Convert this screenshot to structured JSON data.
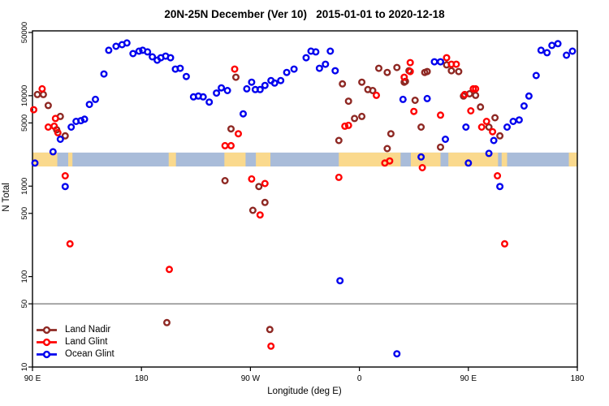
{
  "chart_data": {
    "type": "scatter",
    "title": "20N-25N December (Ver 10)   2015-01-01 to 2020-12-18",
    "x_axis": {
      "label": "Longitude (deg E)",
      "ticks": [
        {
          "value": 90,
          "label": "90 E"
        },
        {
          "value": 180,
          "label": "180"
        },
        {
          "value": 270,
          "label": "90 W"
        },
        {
          "value": 360,
          "label": "0"
        },
        {
          "value": 450,
          "label": "90 E"
        },
        {
          "value": 540,
          "label": "180"
        }
      ],
      "xlim": [
        90,
        540
      ]
    },
    "y_axis": {
      "label": "N Total",
      "scale": "log",
      "ticks": [
        {
          "value": 50000,
          "label": "50000"
        },
        {
          "value": 10000,
          "label": "10000"
        },
        {
          "value": 5000,
          "label": "5000"
        },
        {
          "value": 1000,
          "label": "1000"
        },
        {
          "value": 500,
          "label": "500"
        },
        {
          "value": 100,
          "label": "100"
        },
        {
          "value": 50,
          "label": "50"
        },
        {
          "value": 10,
          "label": "10"
        }
      ],
      "ylim": [
        10,
        50000
      ]
    },
    "reference_line": {
      "value": 50,
      "color": "#808080"
    },
    "map_band": {
      "description": "20N-25N latitude world-map strip drawn across plot",
      "value_range": [
        1650,
        2350
      ],
      "ocean_color": "#a9bcd9",
      "land_color": "#fad98d",
      "land_segments_lon": [
        [
          90,
          110.5
        ],
        [
          119.5,
          123
        ],
        [
          202.5,
          208.5
        ],
        [
          248.5,
          266
        ],
        [
          274.5,
          286.5
        ],
        [
          343,
          394
        ],
        [
          402.5,
          427
        ],
        [
          433.5,
          474.5
        ],
        [
          477.5,
          482
        ],
        [
          533,
          540
        ]
      ]
    },
    "legend": {
      "position": "bottom-left"
    },
    "series": [
      {
        "name": "Land Nadir",
        "color": "#8e2823",
        "points": [
          [
            94,
            10300
          ],
          [
            99,
            10300
          ],
          [
            103,
            7800
          ],
          [
            110,
            4200
          ],
          [
            113,
            5900
          ],
          [
            117,
            3600
          ],
          [
            201,
            31
          ],
          [
            249,
            1150
          ],
          [
            254,
            4300
          ],
          [
            258,
            16000
          ],
          [
            272,
            540
          ],
          [
            277,
            990
          ],
          [
            282,
            660
          ],
          [
            286,
            26
          ],
          [
            343,
            3200
          ],
          [
            346,
            13500
          ],
          [
            351,
            8700
          ],
          [
            356,
            5600
          ],
          [
            362,
            5900
          ],
          [
            362,
            14100
          ],
          [
            367,
            11700
          ],
          [
            371,
            11400
          ],
          [
            376,
            20100
          ],
          [
            383,
            18100
          ],
          [
            383,
            2600
          ],
          [
            386,
            3800
          ],
          [
            391,
            20500
          ],
          [
            397,
            14100
          ],
          [
            398,
            14400
          ],
          [
            401,
            18900
          ],
          [
            406,
            8900
          ],
          [
            411,
            4500
          ],
          [
            414,
            18100
          ],
          [
            416,
            18500
          ],
          [
            427,
            2700
          ],
          [
            432,
            21900
          ],
          [
            436,
            18900
          ],
          [
            442,
            18500
          ],
          [
            446,
            9900
          ],
          [
            451,
            10500
          ],
          [
            456,
            10100
          ],
          [
            460,
            7500
          ],
          [
            467,
            4500
          ],
          [
            472,
            5700
          ],
          [
            476,
            3600
          ]
        ]
      },
      {
        "name": "Land Glint",
        "color": "#ff0000",
        "points": [
          [
            91,
            7000
          ],
          [
            98,
            11900
          ],
          [
            103,
            4500
          ],
          [
            108,
            4600
          ],
          [
            109,
            5600
          ],
          [
            111,
            3900
          ],
          [
            117,
            1300
          ],
          [
            121,
            230
          ],
          [
            203,
            120
          ],
          [
            249,
            2800
          ],
          [
            254,
            2800
          ],
          [
            257,
            19700
          ],
          [
            260,
            3800
          ],
          [
            271,
            1200
          ],
          [
            278,
            480
          ],
          [
            282,
            1070
          ],
          [
            287,
            17
          ],
          [
            343,
            1250
          ],
          [
            348,
            4600
          ],
          [
            351,
            4700
          ],
          [
            374,
            10100
          ],
          [
            381,
            1800
          ],
          [
            385,
            1900
          ],
          [
            397,
            16000
          ],
          [
            402,
            23200
          ],
          [
            402,
            18500
          ],
          [
            405,
            6700
          ],
          [
            412,
            1600
          ],
          [
            427,
            6100
          ],
          [
            432,
            26300
          ],
          [
            436,
            22300
          ],
          [
            440,
            22300
          ],
          [
            447,
            10300
          ],
          [
            452,
            6800
          ],
          [
            454,
            11900
          ],
          [
            456,
            11900
          ],
          [
            461,
            4500
          ],
          [
            465,
            5200
          ],
          [
            470,
            4000
          ],
          [
            474,
            1300
          ],
          [
            480,
            230
          ]
        ]
      },
      {
        "name": "Ocean Glint",
        "color": "#0000ee",
        "points": [
          [
            92,
            1800
          ],
          [
            107,
            2400
          ],
          [
            113,
            3300
          ],
          [
            117,
            990
          ],
          [
            122,
            4500
          ],
          [
            126,
            5200
          ],
          [
            130,
            5300
          ],
          [
            133,
            5500
          ],
          [
            137,
            8000
          ],
          [
            142,
            9100
          ],
          [
            149,
            17400
          ],
          [
            153,
            31800
          ],
          [
            159,
            35200
          ],
          [
            164,
            36700
          ],
          [
            168,
            38300
          ],
          [
            173,
            29200
          ],
          [
            178,
            31100
          ],
          [
            181,
            31800
          ],
          [
            185,
            30500
          ],
          [
            189,
            26900
          ],
          [
            193,
            24700
          ],
          [
            196,
            26300
          ],
          [
            200,
            27400
          ],
          [
            204,
            26300
          ],
          [
            208,
            19700
          ],
          [
            212,
            20100
          ],
          [
            217,
            16300
          ],
          [
            223,
            9700
          ],
          [
            227,
            9900
          ],
          [
            231,
            9700
          ],
          [
            236,
            8500
          ],
          [
            242,
            10700
          ],
          [
            246,
            12200
          ],
          [
            251,
            11400
          ],
          [
            264,
            6300
          ],
          [
            267,
            11900
          ],
          [
            271,
            14100
          ],
          [
            274,
            11700
          ],
          [
            278,
            11700
          ],
          [
            282,
            13000
          ],
          [
            287,
            14700
          ],
          [
            290,
            13800
          ],
          [
            295,
            14700
          ],
          [
            300,
            18100
          ],
          [
            306,
            19700
          ],
          [
            316,
            26300
          ],
          [
            320,
            31100
          ],
          [
            324,
            30500
          ],
          [
            327,
            20100
          ],
          [
            332,
            22300
          ],
          [
            336,
            31100
          ],
          [
            340,
            18900
          ],
          [
            344,
            90
          ],
          [
            391,
            14
          ],
          [
            396,
            9100
          ],
          [
            411,
            2100
          ],
          [
            416,
            9300
          ],
          [
            422,
            23700
          ],
          [
            427,
            23700
          ],
          [
            431,
            3300
          ],
          [
            448,
            4500
          ],
          [
            450,
            1800
          ],
          [
            467,
            2300
          ],
          [
            471,
            3200
          ],
          [
            476,
            990
          ],
          [
            482,
            4500
          ],
          [
            487,
            5200
          ],
          [
            492,
            5400
          ],
          [
            496,
            7700
          ],
          [
            500,
            9900
          ],
          [
            506,
            16700
          ],
          [
            510,
            31800
          ],
          [
            515,
            29900
          ],
          [
            519,
            36000
          ],
          [
            524,
            37600
          ],
          [
            531,
            28000
          ],
          [
            536,
            31100
          ]
        ]
      }
    ]
  }
}
